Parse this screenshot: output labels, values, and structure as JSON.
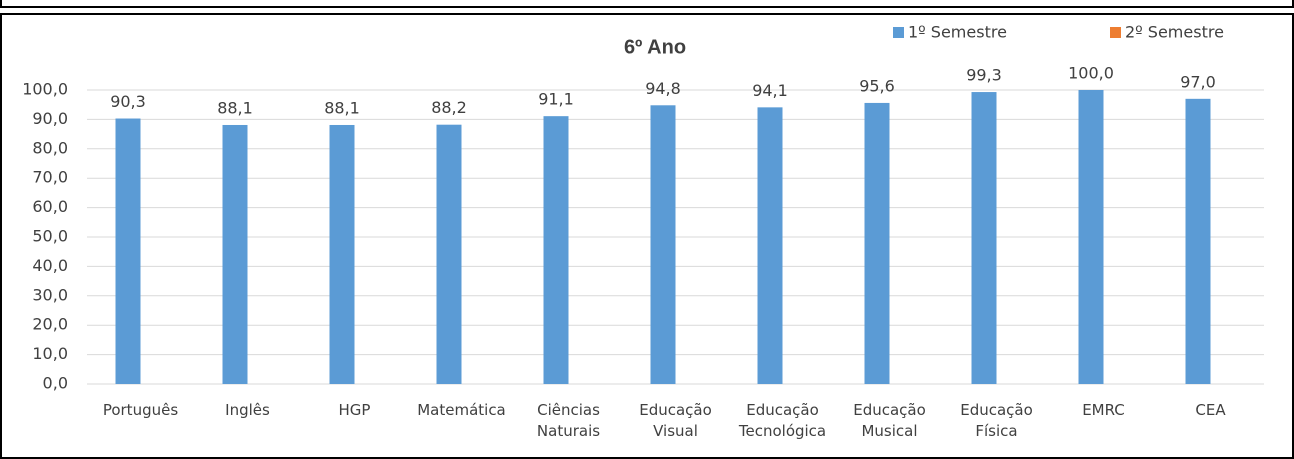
{
  "chart_data": {
    "type": "bar",
    "title": "6º Ano",
    "categories": [
      "Português",
      "Inglês",
      "HGP",
      "Matemática",
      "Ciências Naturais",
      "Educação Visual",
      "Educação Tecnológica",
      "Educação Musical",
      "Educação Física",
      "EMRC",
      "CEA"
    ],
    "series": [
      {
        "name": "1º Semestre",
        "color": "#5b9bd5",
        "values": [
          90.3,
          88.1,
          88.1,
          88.2,
          91.1,
          94.8,
          94.1,
          95.6,
          99.3,
          100.0,
          97.0
        ],
        "value_labels": [
          "90,3",
          "88,1",
          "88,1",
          "88,2",
          "91,1",
          "94,8",
          "94,1",
          "95,6",
          "99,3",
          "100,0",
          "97,0"
        ]
      },
      {
        "name": "2º Semestre",
        "color": "#ed7d31",
        "values": [
          null,
          null,
          null,
          null,
          null,
          null,
          null,
          null,
          null,
          null,
          null
        ]
      }
    ],
    "ylim": [
      0,
      100
    ],
    "yticks": [
      {
        "value": 0,
        "label": "0,0"
      },
      {
        "value": 10,
        "label": "10,0"
      },
      {
        "value": 20,
        "label": "20,0"
      },
      {
        "value": 30,
        "label": "30,0"
      },
      {
        "value": 40,
        "label": "40,0"
      },
      {
        "value": 50,
        "label": "50,0"
      },
      {
        "value": 60,
        "label": "60,0"
      },
      {
        "value": 70,
        "label": "70,0"
      },
      {
        "value": 80,
        "label": "80,0"
      },
      {
        "value": 90,
        "label": "90,0"
      },
      {
        "value": 100,
        "label": "100,0"
      }
    ],
    "grid": true,
    "legend": "top-right"
  }
}
